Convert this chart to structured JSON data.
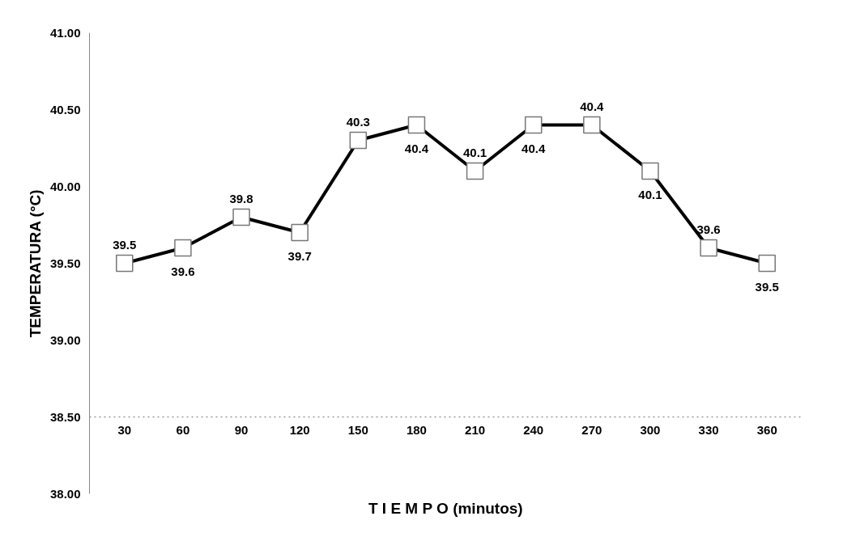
{
  "chart_data": {
    "type": "line",
    "xlabel": "T I E M P O (minutos)",
    "ylabel": "TEMPERATURA (°C)",
    "categories": [
      "30",
      "60",
      "90",
      "120",
      "150",
      "180",
      "210",
      "240",
      "270",
      "300",
      "330",
      "360"
    ],
    "series": [
      {
        "color": "#000000",
        "values": [
          39.5,
          39.6,
          39.8,
          39.7,
          40.3,
          40.4,
          40.1,
          40.4,
          40.4,
          40.1,
          39.6,
          39.5
        ]
      }
    ],
    "ylim": [
      38.0,
      41.0
    ],
    "yticks": [
      {
        "value": 38.0,
        "label": "38.00"
      },
      {
        "value": 38.5,
        "label": "38.50"
      },
      {
        "value": 39.0,
        "label": "39.00"
      },
      {
        "value": 39.5,
        "label": "39.50"
      },
      {
        "value": 40.0,
        "label": "40.00"
      },
      {
        "value": 40.5,
        "label": "40.50"
      },
      {
        "value": 41.0,
        "label": "41.00"
      }
    ],
    "ref_lines": [
      {
        "axis": "y",
        "value": 38.5,
        "color": "#999999",
        "line_style": "dotted"
      }
    ],
    "marker": "square",
    "data_labels": true,
    "grid": false
  }
}
